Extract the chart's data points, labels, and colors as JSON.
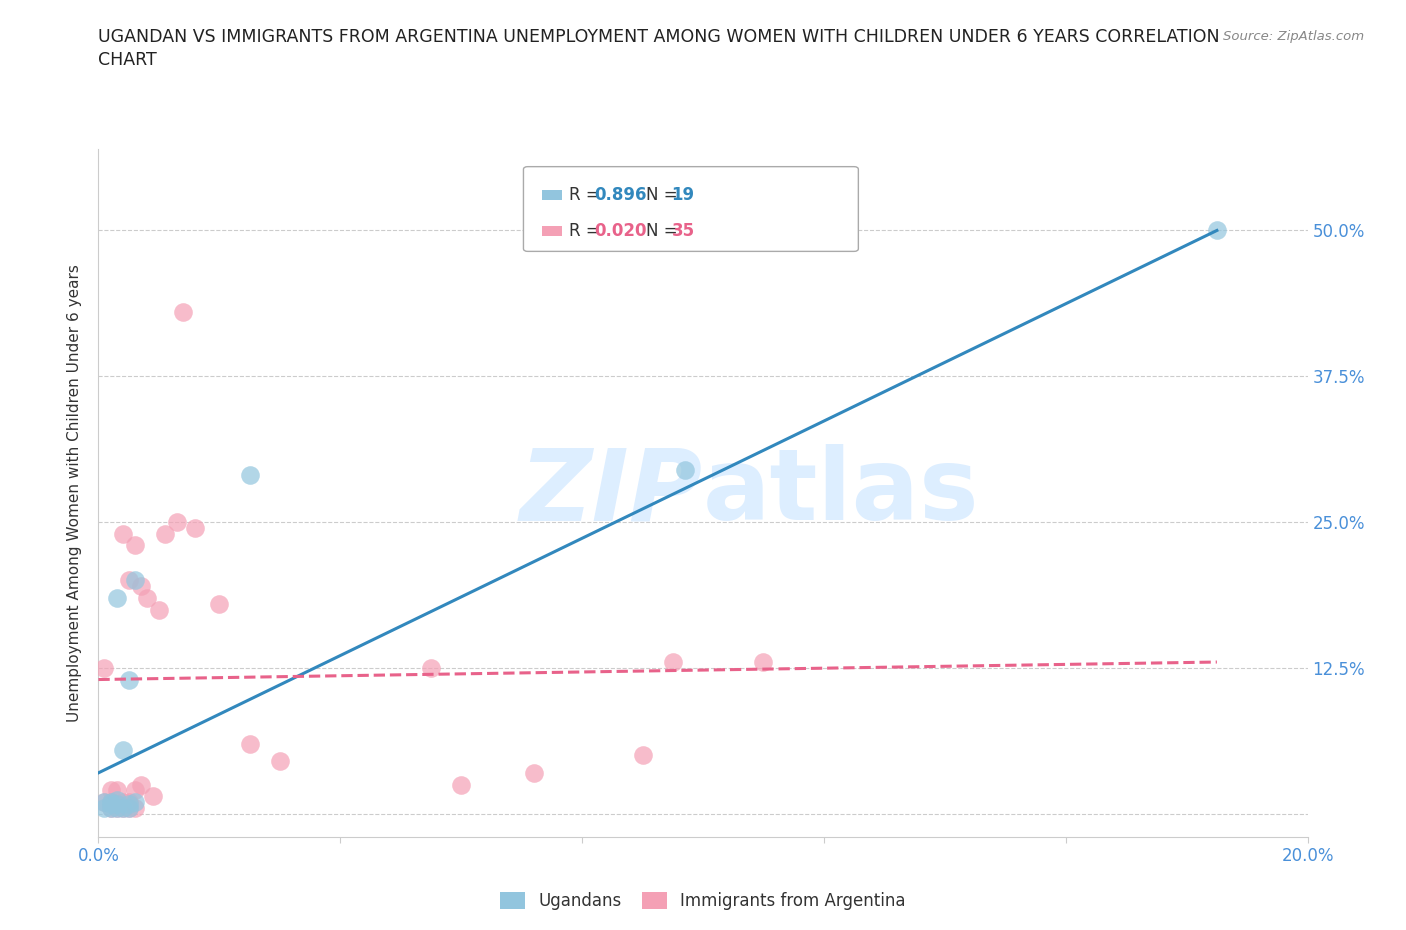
{
  "title_line1": "UGANDAN VS IMMIGRANTS FROM ARGENTINA UNEMPLOYMENT AMONG WOMEN WITH CHILDREN UNDER 6 YEARS CORRELATION",
  "title_line2": "CHART",
  "source": "Source: ZipAtlas.com",
  "ylabel": "Unemployment Among Women with Children Under 6 years",
  "xlim": [
    0.0,
    0.2
  ],
  "ylim": [
    -0.02,
    0.57
  ],
  "xticks": [
    0.0,
    0.04,
    0.08,
    0.12,
    0.16,
    0.2
  ],
  "xticklabels": [
    "0.0%",
    "",
    "",
    "",
    "",
    "20.0%"
  ],
  "yticks": [
    0.0,
    0.125,
    0.25,
    0.375,
    0.5
  ],
  "yticklabels": [
    "",
    "12.5%",
    "25.0%",
    "37.5%",
    "50.0%"
  ],
  "blue_color": "#92c5de",
  "pink_color": "#f4a0b5",
  "blue_line_color": "#3288bd",
  "pink_line_color": "#e8628a",
  "watermark_color": "#ddeeff",
  "grid_color": "#cccccc",
  "background_color": "#ffffff",
  "title_color": "#222222",
  "tick_color": "#4a90d9",
  "ugandan_x": [
    0.001,
    0.001,
    0.002,
    0.002,
    0.002,
    0.003,
    0.003,
    0.003,
    0.003,
    0.004,
    0.004,
    0.005,
    0.005,
    0.005,
    0.006,
    0.006,
    0.025,
    0.097,
    0.185
  ],
  "ugandan_y": [
    0.005,
    0.01,
    0.005,
    0.008,
    0.01,
    0.005,
    0.008,
    0.012,
    0.185,
    0.005,
    0.055,
    0.005,
    0.008,
    0.115,
    0.01,
    0.2,
    0.29,
    0.295,
    0.5
  ],
  "argentina_x": [
    0.001,
    0.001,
    0.002,
    0.002,
    0.002,
    0.003,
    0.003,
    0.003,
    0.004,
    0.004,
    0.004,
    0.005,
    0.005,
    0.005,
    0.006,
    0.006,
    0.006,
    0.007,
    0.007,
    0.008,
    0.009,
    0.01,
    0.011,
    0.013,
    0.014,
    0.016,
    0.02,
    0.025,
    0.03,
    0.055,
    0.06,
    0.072,
    0.09,
    0.095,
    0.11
  ],
  "argentina_y": [
    0.01,
    0.125,
    0.005,
    0.01,
    0.02,
    0.005,
    0.008,
    0.02,
    0.005,
    0.01,
    0.24,
    0.005,
    0.01,
    0.2,
    0.005,
    0.02,
    0.23,
    0.025,
    0.195,
    0.185,
    0.015,
    0.175,
    0.24,
    0.25,
    0.43,
    0.245,
    0.18,
    0.06,
    0.045,
    0.125,
    0.025,
    0.035,
    0.05,
    0.13,
    0.13
  ],
  "blue_trend_x": [
    0.0,
    0.185
  ],
  "blue_trend_y": [
    0.035,
    0.5
  ],
  "pink_trend_x": [
    0.0,
    0.185
  ],
  "pink_trend_y": [
    0.115,
    0.13
  ]
}
